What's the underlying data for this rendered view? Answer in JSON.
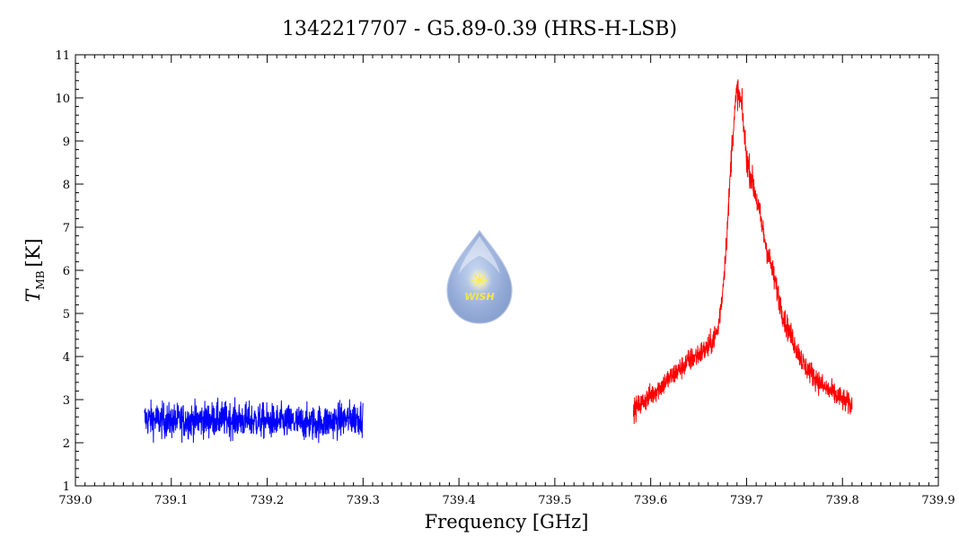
{
  "chart_data": {
    "type": "line",
    "title": "1342217707 - G5.89-0.39 (HRS-H-LSB)",
    "xlabel": "Frequency [GHz]",
    "ylabel": {
      "symbol": "T",
      "subscript": "MB",
      "unit": "[K]"
    },
    "xlim": [
      739.0,
      739.9
    ],
    "ylim": [
      1,
      11
    ],
    "xticks": [
      "739.0",
      "739.1",
      "739.2",
      "739.3",
      "739.4",
      "739.5",
      "739.6",
      "739.7",
      "739.8",
      "739.9"
    ],
    "yticks": [
      "1",
      "2",
      "3",
      "4",
      "5",
      "6",
      "7",
      "8",
      "9",
      "10",
      "11"
    ],
    "grid": false,
    "series": [
      {
        "color": "#0000ff",
        "noise": 0.22,
        "x": [
          739.072,
          739.1,
          739.15,
          739.2,
          739.25,
          739.3
        ],
        "y": [
          2.55,
          2.5,
          2.55,
          2.5,
          2.45,
          2.6
        ]
      },
      {
        "color": "#ff0000",
        "noise": 0.14,
        "x": [
          739.582,
          739.6,
          739.62,
          739.64,
          739.66,
          739.67,
          739.675,
          739.68,
          739.685,
          739.69,
          739.695,
          739.7,
          739.71,
          739.72,
          739.73,
          739.74,
          739.76,
          739.78,
          739.8,
          739.81
        ],
        "y": [
          2.75,
          3.1,
          3.5,
          3.9,
          4.2,
          4.6,
          5.5,
          7.0,
          9.0,
          10.2,
          9.8,
          8.6,
          7.7,
          6.6,
          5.7,
          4.8,
          3.8,
          3.3,
          3.0,
          2.85
        ]
      }
    ]
  },
  "logo": {
    "text": "WISH"
  }
}
